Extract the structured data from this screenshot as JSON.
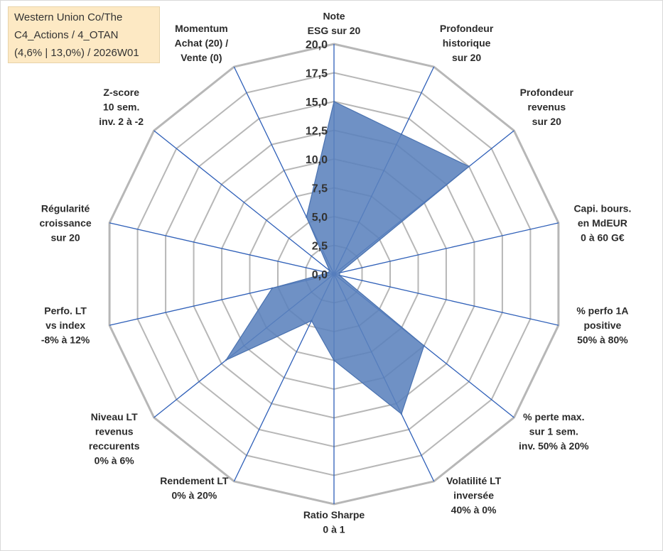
{
  "title_lines": [
    "Western Union Co/The",
    "C4_Actions / 4_OTAN",
    "(4,6% | 13,0%) / 2026W01"
  ],
  "colors": {
    "grid": "#b7b7b7",
    "spoke": "#2e5fb8",
    "area": "#5b82bd",
    "area_stroke": "#4a72b0",
    "text": "#2b2b2b",
    "title_bg": "#fde9c4"
  },
  "chart_data": {
    "type": "radar",
    "rmin": 0,
    "rmax": 20,
    "tick_labels": [
      "0,0",
      "2,5",
      "5,0",
      "7,5",
      "10,0",
      "12,5",
      "15,0",
      "17,5",
      "20,0"
    ],
    "axes": [
      {
        "label": [
          "Note",
          "ESG sur 20"
        ],
        "value": 15
      },
      {
        "label": [
          "Profondeur",
          "historique",
          "sur 20"
        ],
        "value": 13.5
      },
      {
        "label": [
          "Profondeur",
          "revenus",
          "sur 20"
        ],
        "value": 15
      },
      {
        "label": [
          "Capi. bours.",
          "en MdEUR",
          "0 à 60 G€"
        ],
        "value": 0.5
      },
      {
        "label": [
          "% perfo 1A",
          "positive",
          "50% à 80%"
        ],
        "value": 0.5
      },
      {
        "label": [
          "% perte max.",
          "sur 1 sem.",
          "inv. 50% à 20%"
        ],
        "value": 10
      },
      {
        "label": [
          "Volatilité LT",
          "inversée",
          "40% à 0%"
        ],
        "value": 13.5
      },
      {
        "label": [
          "Ratio Sharpe",
          "0 à 1"
        ],
        "value": 7.5
      },
      {
        "label": [
          "Rendement LT",
          "0% à 20%"
        ],
        "value": 4.5
      },
      {
        "label": [
          "Niveau LT",
          "revenus",
          "reccurents",
          "0% à 6%"
        ],
        "value": 12
      },
      {
        "label": [
          "Perfo. LT",
          "vs index",
          "-8% à 12%"
        ],
        "value": 5.5
      },
      {
        "label": [
          "Régularité",
          "croissance",
          "sur 20"
        ],
        "value": 0.5
      },
      {
        "label": [
          "Z-score",
          "10 sem.",
          "inv. 2 à -2"
        ],
        "value": 0.5
      },
      {
        "label": [
          "Momentum",
          "Achat (20) /",
          "Vente (0)"
        ],
        "value": 5.5
      }
    ]
  }
}
